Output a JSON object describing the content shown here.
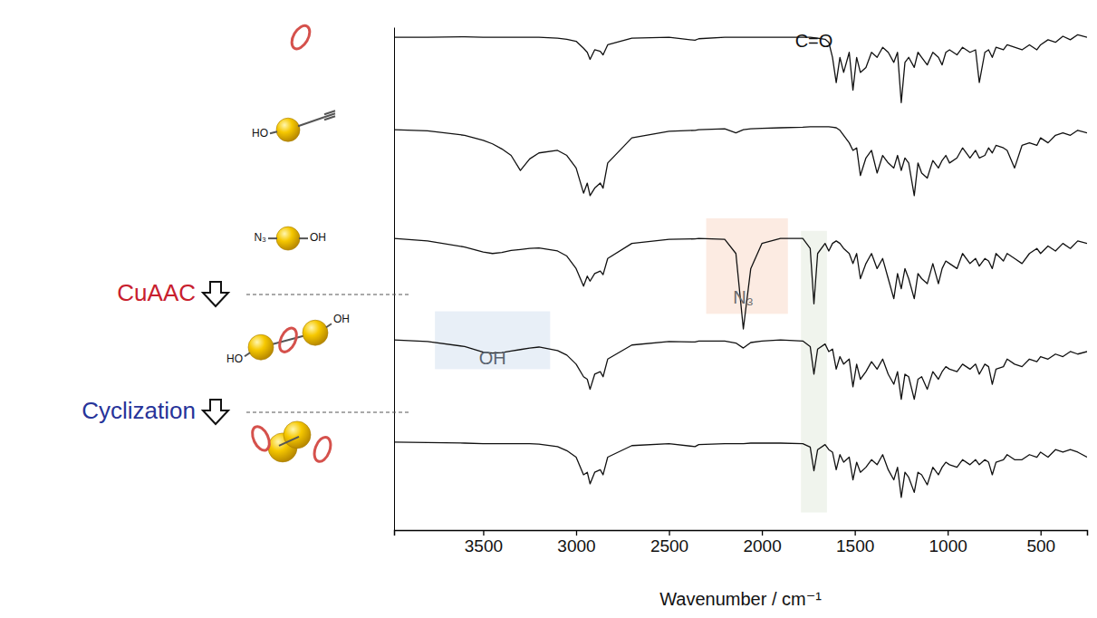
{
  "chart_data": {
    "type": "line",
    "x_label": "Wavenumber / cm⁻¹",
    "xlim": [
      3980,
      250
    ],
    "xticks": [
      3500,
      3000,
      2500,
      2000,
      1500,
      1000,
      500
    ],
    "ylim": [
      0,
      100
    ],
    "tick_labels": "x",
    "grid": false,
    "x": [
      3980,
      3800,
      3600,
      3500,
      3450,
      3400,
      3350,
      3300,
      3250,
      3200,
      3100,
      3050,
      3000,
      2960,
      2940,
      2925,
      2900,
      2870,
      2855,
      2830,
      2700,
      2500,
      2360,
      2340,
      2200,
      2140,
      2100,
      2060,
      2000,
      1900,
      1780,
      1740,
      1720,
      1700,
      1660,
      1640,
      1620,
      1600,
      1580,
      1560,
      1530,
      1510,
      1490,
      1470,
      1440,
      1410,
      1380,
      1350,
      1320,
      1290,
      1270,
      1250,
      1230,
      1210,
      1180,
      1160,
      1140,
      1110,
      1080,
      1050,
      1030,
      1010,
      990,
      950,
      920,
      880,
      850,
      830,
      800,
      780,
      760,
      740,
      700,
      680,
      640,
      600,
      560,
      520,
      500,
      460,
      420,
      380,
      340,
      300,
      250
    ],
    "series": [
      {
        "color": "#111111",
        "values": [
          98,
          98,
          98.1,
          98,
          98,
          98,
          98,
          98,
          98,
          98,
          97.8,
          97.6,
          97.2,
          95.8,
          95,
          93.6,
          95.5,
          95.2,
          94.5,
          96.5,
          97.8,
          98,
          97.4,
          97.7,
          98,
          98,
          98,
          98,
          98,
          98,
          98,
          98,
          97.9,
          97.8,
          97.6,
          97,
          94,
          89,
          94,
          91,
          95,
          87.5,
          94,
          91,
          92,
          95,
          94,
          96,
          95,
          93,
          95,
          85,
          93,
          94,
          92,
          95,
          94,
          92.5,
          95,
          94,
          92.5,
          95,
          95.5,
          94.5,
          96,
          95,
          95.5,
          89,
          95,
          95.5,
          94,
          96,
          95.5,
          96.5,
          96,
          95.5,
          96.5,
          95.5,
          96.5,
          97.5,
          97,
          98.2,
          97.5,
          98.5,
          98
        ]
      },
      {
        "color": "#111111",
        "values": [
          79.6,
          79.4,
          78.5,
          77.5,
          76.8,
          75.8,
          74.5,
          71.5,
          73.8,
          75,
          75.5,
          74.5,
          72,
          67,
          69,
          66.5,
          68,
          69,
          68,
          73,
          78,
          79.3,
          79.5,
          79.6,
          79.8,
          79,
          79.6,
          79.8,
          79.9,
          80,
          80.1,
          80.2,
          80.2,
          80.2,
          80.2,
          80.2,
          80.1,
          80,
          79.5,
          78.5,
          77,
          75.5,
          76,
          70.5,
          74,
          75.5,
          71,
          74.5,
          73,
          72,
          74.5,
          71.5,
          74,
          73,
          66.5,
          73,
          71,
          70,
          73.5,
          72,
          73.5,
          74.5,
          73,
          74,
          76,
          74,
          75.5,
          74,
          74.5,
          76,
          75,
          76.5,
          76,
          75.5,
          72,
          76.5,
          77,
          76.5,
          78,
          77,
          78.5,
          79,
          78.5,
          79.5,
          79
        ]
      },
      {
        "color": "#111111",
        "values": [
          58,
          57.5,
          56.3,
          55.3,
          55,
          55.2,
          55.6,
          55.8,
          56,
          56.1,
          55.5,
          54.5,
          52,
          48.5,
          50.5,
          49.5,
          51,
          51.5,
          50.8,
          54,
          57,
          57.8,
          57.9,
          58,
          57.8,
          55,
          40,
          52,
          57,
          58,
          58,
          56,
          45,
          55,
          57,
          55.5,
          57,
          57.5,
          57,
          56,
          55,
          53,
          55,
          50,
          53,
          55,
          52,
          54,
          50,
          46,
          51,
          48,
          52,
          50,
          46,
          51,
          50,
          49,
          53,
          49,
          52,
          53.5,
          53,
          52,
          55,
          53,
          54,
          52.5,
          54,
          53.5,
          52,
          55,
          53.5,
          55,
          54,
          53,
          55,
          56,
          55,
          56.5,
          55.5,
          57,
          56,
          57.5,
          57
        ]
      },
      {
        "color": "#111111",
        "values": [
          37.8,
          37.5,
          36.5,
          35.4,
          35.2,
          35.3,
          35.6,
          35.9,
          36.2,
          36.4,
          35.7,
          34.8,
          33,
          30.5,
          30,
          28,
          31,
          31.5,
          30.5,
          34,
          36.8,
          37.5,
          37.4,
          37.6,
          37.6,
          37.2,
          36.2,
          37.3,
          37.6,
          37.8,
          37.6,
          36.5,
          31,
          36,
          37,
          35.5,
          36,
          32,
          34.5,
          33,
          34,
          28.5,
          33,
          30,
          31.5,
          33.5,
          32,
          34,
          31,
          29,
          31.5,
          26,
          31,
          30.5,
          26,
          30,
          30.5,
          28,
          31.5,
          30,
          31.5,
          32.5,
          32,
          31.5,
          33,
          32,
          33,
          31,
          33,
          32.5,
          29,
          32,
          32.5,
          34,
          33,
          32.5,
          34,
          33.5,
          34.5,
          34,
          35,
          34.5,
          35.5,
          35,
          35.5
        ]
      },
      {
        "color": "#111111",
        "values": [
          17.5,
          17.4,
          17.3,
          17.2,
          17.2,
          17.2,
          17.2,
          17.2,
          17.2,
          17.1,
          16.6,
          15.8,
          14.5,
          11,
          11.5,
          9.2,
          11.5,
          12,
          11,
          14.5,
          16.8,
          17.2,
          16.6,
          17,
          17.2,
          17.2,
          17.2,
          17.3,
          17.3,
          17.3,
          17.2,
          16.5,
          11.8,
          16,
          17,
          16,
          15.5,
          12,
          15,
          13.5,
          14.5,
          10,
          13.5,
          11.5,
          12.5,
          14,
          13,
          15,
          12,
          10,
          12.5,
          6.5,
          11.5,
          10.5,
          7.5,
          11.5,
          11,
          9,
          12.5,
          11,
          12.5,
          13.5,
          13,
          12.5,
          14,
          13,
          14,
          13,
          14,
          13.5,
          11,
          13.5,
          14,
          15,
          14,
          14,
          15,
          14.5,
          15.5,
          14.5,
          16,
          15.5,
          16,
          15.5,
          14.5
        ]
      }
    ],
    "annotations": [
      {
        "text": "OH",
        "x": 3450,
        "y": 34,
        "x_range": [
          3760,
          3140
        ],
        "y_range": [
          32,
          43.5
        ],
        "color": "#e4ecf6"
      },
      {
        "text": "N₃",
        "x": 2100,
        "y": 46,
        "x_range": [
          2300,
          1860
        ],
        "y_range": [
          43,
          62
        ],
        "color": "#fbe7dd"
      },
      {
        "text": "C=O",
        "x": 1720,
        "y": 97,
        "x_range": [
          1790,
          1650
        ],
        "y_range": [
          3.5,
          59.5
        ],
        "color": "#edf2ea"
      }
    ]
  },
  "scheme": {
    "steps": [
      {
        "text": "CuAAC",
        "color": "#c8202e"
      },
      {
        "text": "Cyclization",
        "color": "#27349a"
      }
    ],
    "structures": [
      {
        "labels": []
      },
      {
        "labels": [
          "HO"
        ]
      },
      {
        "labels": [
          "N₃",
          "OH"
        ]
      },
      {
        "labels": [
          "HO",
          "OH"
        ]
      },
      {
        "labels": []
      }
    ]
  }
}
